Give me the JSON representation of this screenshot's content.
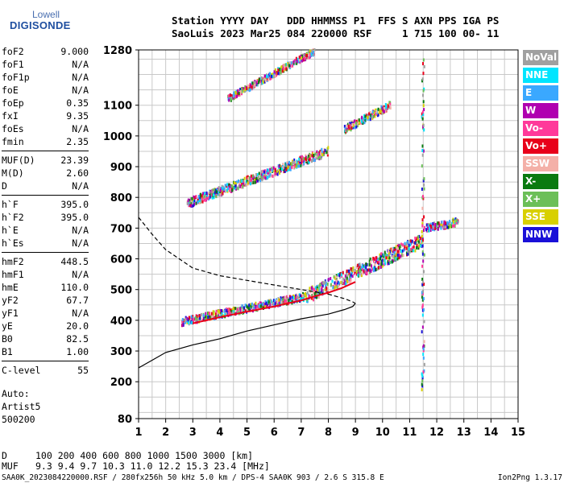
{
  "logo": {
    "top": "Lowell",
    "bottom": "DIGISONDE"
  },
  "header": {
    "line1": "Station YYYY DAY   DDD HHMMSS P1  FFS S AXN PPS IGA PS",
    "line2": "SaoLuis 2023 Mar25 084 220000 RSF     1 715 100 00- 11"
  },
  "params": {
    "group1": [
      {
        "label": "foF2",
        "value": "9.000"
      },
      {
        "label": "foF1",
        "value": "N/A"
      },
      {
        "label": "foF1p",
        "value": "N/A"
      },
      {
        "label": "foE",
        "value": "N/A"
      },
      {
        "label": "foEp",
        "value": "0.35"
      },
      {
        "label": "fxI",
        "value": "9.35"
      },
      {
        "label": "foEs",
        "value": "N/A"
      },
      {
        "label": "fmin",
        "value": "2.35"
      }
    ],
    "group2": [
      {
        "label": "MUF(D)",
        "value": "23.39"
      },
      {
        "label": "M(D)",
        "value": "2.60"
      },
      {
        "label": "D",
        "value": "N/A"
      }
    ],
    "group3": [
      {
        "label": "h`F",
        "value": "395.0"
      },
      {
        "label": "h`F2",
        "value": "395.0"
      },
      {
        "label": "h`E",
        "value": "N/A"
      },
      {
        "label": "h`Es",
        "value": "N/A"
      }
    ],
    "group4": [
      {
        "label": "hmF2",
        "value": "448.5"
      },
      {
        "label": "hmF1",
        "value": "N/A"
      },
      {
        "label": "hmE",
        "value": "110.0"
      },
      {
        "label": "yF2",
        "value": "67.7"
      },
      {
        "label": "yF1",
        "value": "N/A"
      },
      {
        "label": "yE",
        "value": "20.0"
      },
      {
        "label": "B0",
        "value": "82.5"
      },
      {
        "label": "B1",
        "value": "1.00"
      }
    ],
    "group5": [
      {
        "label": "C-level",
        "value": "55"
      }
    ]
  },
  "auto": {
    "line1": "Auto:",
    "line2": "Artist5",
    "line3": "500200"
  },
  "legend": [
    {
      "label": "NoVal",
      "color": "#a0a0a0"
    },
    {
      "label": "NNE",
      "color": "#00e5ff"
    },
    {
      "label": "E",
      "color": "#3aa8ff"
    },
    {
      "label": "W",
      "color": "#b000b0"
    },
    {
      "label": "Vo-",
      "color": "#ff3a9a"
    },
    {
      "label": "Vo+",
      "color": "#e8001a"
    },
    {
      "label": "SSW",
      "color": "#f4b0a8"
    },
    {
      "label": "X-",
      "color": "#0a7a10"
    },
    {
      "label": "X+",
      "color": "#6cbf58"
    },
    {
      "label": "SSE",
      "color": "#d8d000"
    },
    {
      "label": "NNW",
      "color": "#1a10d8"
    }
  ],
  "bottom": {
    "d_label": "D",
    "d_values": "100  200  400  600  800 1000 1500 3000 [km]",
    "muf_label": "MUF",
    "muf_values": "9.3  9.4  9.7 10.3 11.0 12.2 15.3 23.4 [MHz]"
  },
  "footer": {
    "left": "SAA0K_2023084220000.RSF / 280fx256h 50 kHz 5.0 km / DPS-4 SAA0K 903 / 2.6 S 315.8 E",
    "right": "Ion2Png 1.3.17"
  },
  "chart_data": {
    "type": "scatter",
    "x": {
      "range": [
        1,
        15
      ],
      "ticks": [
        1,
        2,
        3,
        4,
        5,
        6,
        7,
        8,
        9,
        10,
        11,
        12,
        13,
        14,
        15
      ]
    },
    "y": {
      "range": [
        80,
        1280
      ],
      "ticks": [
        80,
        200,
        300,
        400,
        500,
        600,
        700,
        800,
        900,
        1000,
        1100,
        1280
      ]
    },
    "grid": true,
    "series": [
      {
        "style": "dashed",
        "points": [
          [
            1.0,
            735
          ],
          [
            1.5,
            680
          ],
          [
            2.0,
            630
          ],
          [
            3.0,
            570
          ],
          [
            4.0,
            545
          ],
          [
            5.0,
            530
          ],
          [
            6.0,
            515
          ],
          [
            7.0,
            500
          ],
          [
            8.0,
            485
          ],
          [
            8.6,
            470
          ],
          [
            8.9,
            460
          ],
          [
            9.0,
            455
          ]
        ]
      },
      {
        "style": "solid",
        "points": [
          [
            1.0,
            245
          ],
          [
            1.5,
            270
          ],
          [
            2.0,
            295
          ],
          [
            3.0,
            320
          ],
          [
            4.0,
            340
          ],
          [
            5.0,
            365
          ],
          [
            6.0,
            385
          ],
          [
            7.0,
            405
          ],
          [
            8.0,
            420
          ],
          [
            8.6,
            435
          ],
          [
            8.9,
            445
          ],
          [
            9.0,
            455
          ]
        ]
      },
      {
        "style": "solid",
        "color": "#e8001a",
        "points": [
          [
            3.0,
            390
          ],
          [
            4.0,
            410
          ],
          [
            5.0,
            428
          ],
          [
            6.0,
            445
          ],
          [
            7.0,
            465
          ],
          [
            7.5,
            478
          ],
          [
            8.0,
            490
          ],
          [
            8.5,
            505
          ],
          [
            9.0,
            525
          ]
        ]
      }
    ],
    "scatter_bands": [
      {
        "x": [
          2.6,
          7.2
        ],
        "y_start": [
          395,
          478
        ],
        "spread": 12,
        "note": "ordinary F2 trace"
      },
      {
        "x": [
          7.2,
          11.5
        ],
        "y_start": [
          478,
          660
        ],
        "spread": 22,
        "note": "upper F2 trace"
      },
      {
        "x": [
          2.8,
          8.0
        ],
        "y_start": [
          780,
          950
        ],
        "spread": 14,
        "note": "second-hop trace"
      },
      {
        "x": [
          8.6,
          10.3
        ],
        "y_start": [
          1020,
          1100
        ],
        "spread": 12,
        "note": "second-hop upper"
      },
      {
        "x": [
          4.3,
          7.5
        ],
        "y_start": [
          1120,
          1275
        ],
        "spread": 10,
        "note": "third-hop trace"
      },
      {
        "x": [
          11.6,
          12.8
        ],
        "y_start": [
          700,
          720
        ],
        "spread": 12,
        "note": "magenta cluster"
      },
      {
        "x": [
          11.45,
          11.55
        ],
        "y_start": [
          150,
          1260
        ],
        "spread": 0,
        "note": "interference column"
      }
    ]
  }
}
